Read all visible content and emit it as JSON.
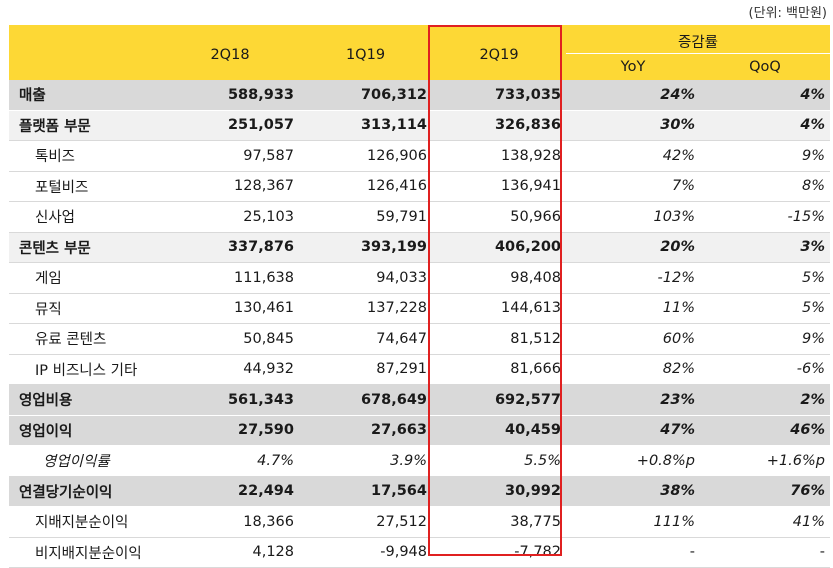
{
  "unit_label": "(단위: 백만원)",
  "header": {
    "col_2q18": "2Q18",
    "col_1q19": "1Q19",
    "col_2q19": "2Q19",
    "change": "증감률",
    "yoy": "YoY",
    "qoq": "QoQ"
  },
  "rows": [
    {
      "label": "매출",
      "v2q18": "588,933",
      "v1q19": "706,312",
      "v2q19": "733,035",
      "yoy": "24%",
      "qoq": "4%"
    },
    {
      "label": "플랫폼 부문",
      "v2q18": "251,057",
      "v1q19": "313,114",
      "v2q19": "326,836",
      "yoy": "30%",
      "qoq": "4%"
    },
    {
      "label": "톡비즈",
      "v2q18": "97,587",
      "v1q19": "126,906",
      "v2q19": "138,928",
      "yoy": "42%",
      "qoq": "9%"
    },
    {
      "label": "포털비즈",
      "v2q18": "128,367",
      "v1q19": "126,416",
      "v2q19": "136,941",
      "yoy": "7%",
      "qoq": "8%"
    },
    {
      "label": "신사업",
      "v2q18": "25,103",
      "v1q19": "59,791",
      "v2q19": "50,966",
      "yoy": "103%",
      "qoq": "-15%"
    },
    {
      "label": "콘텐츠 부문",
      "v2q18": "337,876",
      "v1q19": "393,199",
      "v2q19": "406,200",
      "yoy": "20%",
      "qoq": "3%"
    },
    {
      "label": "게임",
      "v2q18": "111,638",
      "v1q19": "94,033",
      "v2q19": "98,408",
      "yoy": "-12%",
      "qoq": "5%"
    },
    {
      "label": "뮤직",
      "v2q18": "130,461",
      "v1q19": "137,228",
      "v2q19": "144,613",
      "yoy": "11%",
      "qoq": "5%"
    },
    {
      "label": "유료 콘텐츠",
      "v2q18": "50,845",
      "v1q19": "74,647",
      "v2q19": "81,512",
      "yoy": "60%",
      "qoq": "9%"
    },
    {
      "label": "IP 비즈니스 기타",
      "v2q18": "44,932",
      "v1q19": "87,291",
      "v2q19": "81,666",
      "yoy": "82%",
      "qoq": "-6%"
    },
    {
      "label": "영업비용",
      "v2q18": "561,343",
      "v1q19": "678,649",
      "v2q19": "692,577",
      "yoy": "23%",
      "qoq": "2%"
    },
    {
      "label": "영업이익",
      "v2q18": "27,590",
      "v1q19": "27,663",
      "v2q19": "40,459",
      "yoy": "47%",
      "qoq": "46%"
    },
    {
      "label": "영업이익률",
      "v2q18": "4.7%",
      "v1q19": "3.9%",
      "v2q19": "5.5%",
      "yoy": "+0.8%p",
      "qoq": "+1.6%p"
    },
    {
      "label": "연결당기순이익",
      "v2q18": "22,494",
      "v1q19": "17,564",
      "v2q19": "30,992",
      "yoy": "38%",
      "qoq": "76%"
    },
    {
      "label": "지배지분순이익",
      "v2q18": "18,366",
      "v1q19": "27,512",
      "v2q19": "38,775",
      "yoy": "111%",
      "qoq": "41%"
    },
    {
      "label": "비지배지분순이익",
      "v2q18": "4,128",
      "v1q19": "-9,948",
      "v2q19": "-7,782",
      "yoy": "-",
      "qoq": "-"
    }
  ]
}
